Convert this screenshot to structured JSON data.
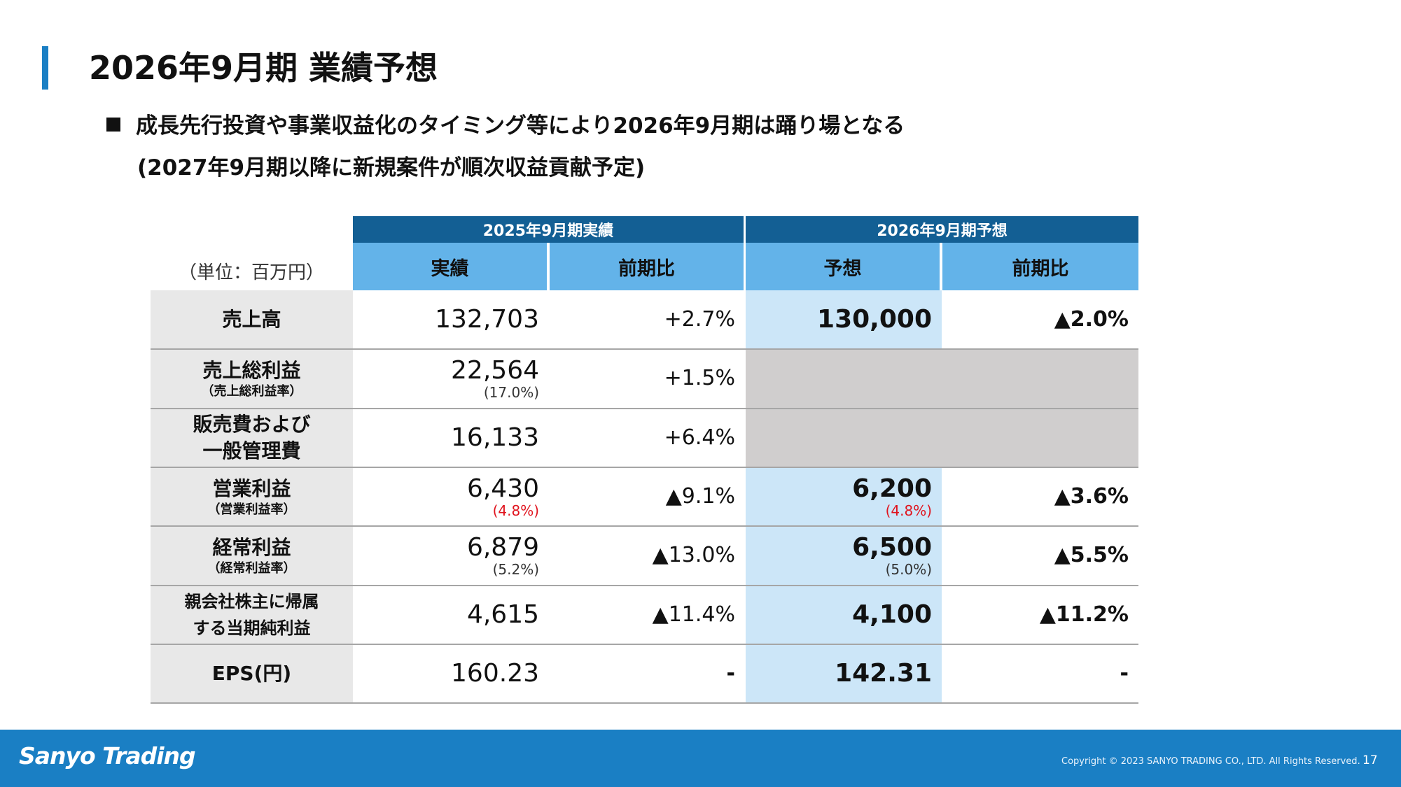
{
  "title": "2026年9月期 業績予想",
  "bullet": {
    "line1": "成長先行投資や事業収益化のタイミング等により2026年9月期は踊り場となる",
    "line2": "(2027年9月期以降に新規案件が順次収益貢献予定)"
  },
  "table": {
    "unit": "（単位：百万円）",
    "group_headers": [
      "2025年9月期実績",
      "2026年9月期予想"
    ],
    "sub_headers": [
      "実績",
      "前期比",
      "予想",
      "前期比"
    ],
    "rows": [
      {
        "label": "売上高",
        "sub": "",
        "actual": "132,703",
        "actual_sub": "",
        "yoy": "+2.7%",
        "forecast": "130,000",
        "forecast_sub": "",
        "f_yoy": "▲2.0%"
      },
      {
        "label": "売上総利益",
        "sub": "（売上総利益率）",
        "actual": "22,564",
        "actual_sub": "(17.0%)",
        "yoy": "+1.5%",
        "forecast": "",
        "forecast_sub": "",
        "f_yoy": ""
      },
      {
        "label": "販売費および一般管理費",
        "label1": "販売費および",
        "label2": "一般管理費",
        "sub": "",
        "actual": "16,133",
        "actual_sub": "",
        "yoy": "+6.4%",
        "forecast": "",
        "forecast_sub": "",
        "f_yoy": ""
      },
      {
        "label": "営業利益",
        "sub": "（営業利益率）",
        "actual": "6,430",
        "actual_sub": "(4.8%)",
        "yoy": "▲9.1%",
        "forecast": "6,200",
        "forecast_sub": "(4.8%)",
        "f_yoy": "▲3.6%"
      },
      {
        "label": "経常利益",
        "sub": "（経常利益率）",
        "actual": "6,879",
        "actual_sub": "(5.2%)",
        "yoy": "▲13.0%",
        "forecast": "6,500",
        "forecast_sub": "(5.0%)",
        "f_yoy": "▲5.5%"
      },
      {
        "label": "親会社株主に帰属する当期純利益",
        "label1": "親会社株主に帰属",
        "label2": "する当期純利益",
        "sub": "",
        "actual": "4,615",
        "actual_sub": "",
        "yoy": "▲11.4%",
        "forecast": "4,100",
        "forecast_sub": "",
        "f_yoy": "▲11.2%"
      },
      {
        "label": "EPS(円)",
        "sub": "",
        "actual": "160.23",
        "actual_sub": "",
        "yoy": "-",
        "forecast": "142.31",
        "forecast_sub": "",
        "f_yoy": "-"
      }
    ]
  },
  "footer": {
    "logo": "Sanyo Trading",
    "copyright": "Copyright © 2023 SANYO TRADING CO., LTD. All Rights Reserved.",
    "page": "17"
  },
  "colors": {
    "header_dark": "#135f94",
    "header_light": "#63b3e9",
    "forecast_bg": "#cce6f8",
    "footer": "#1a7fc4",
    "negative_margin": "#e0141e"
  }
}
